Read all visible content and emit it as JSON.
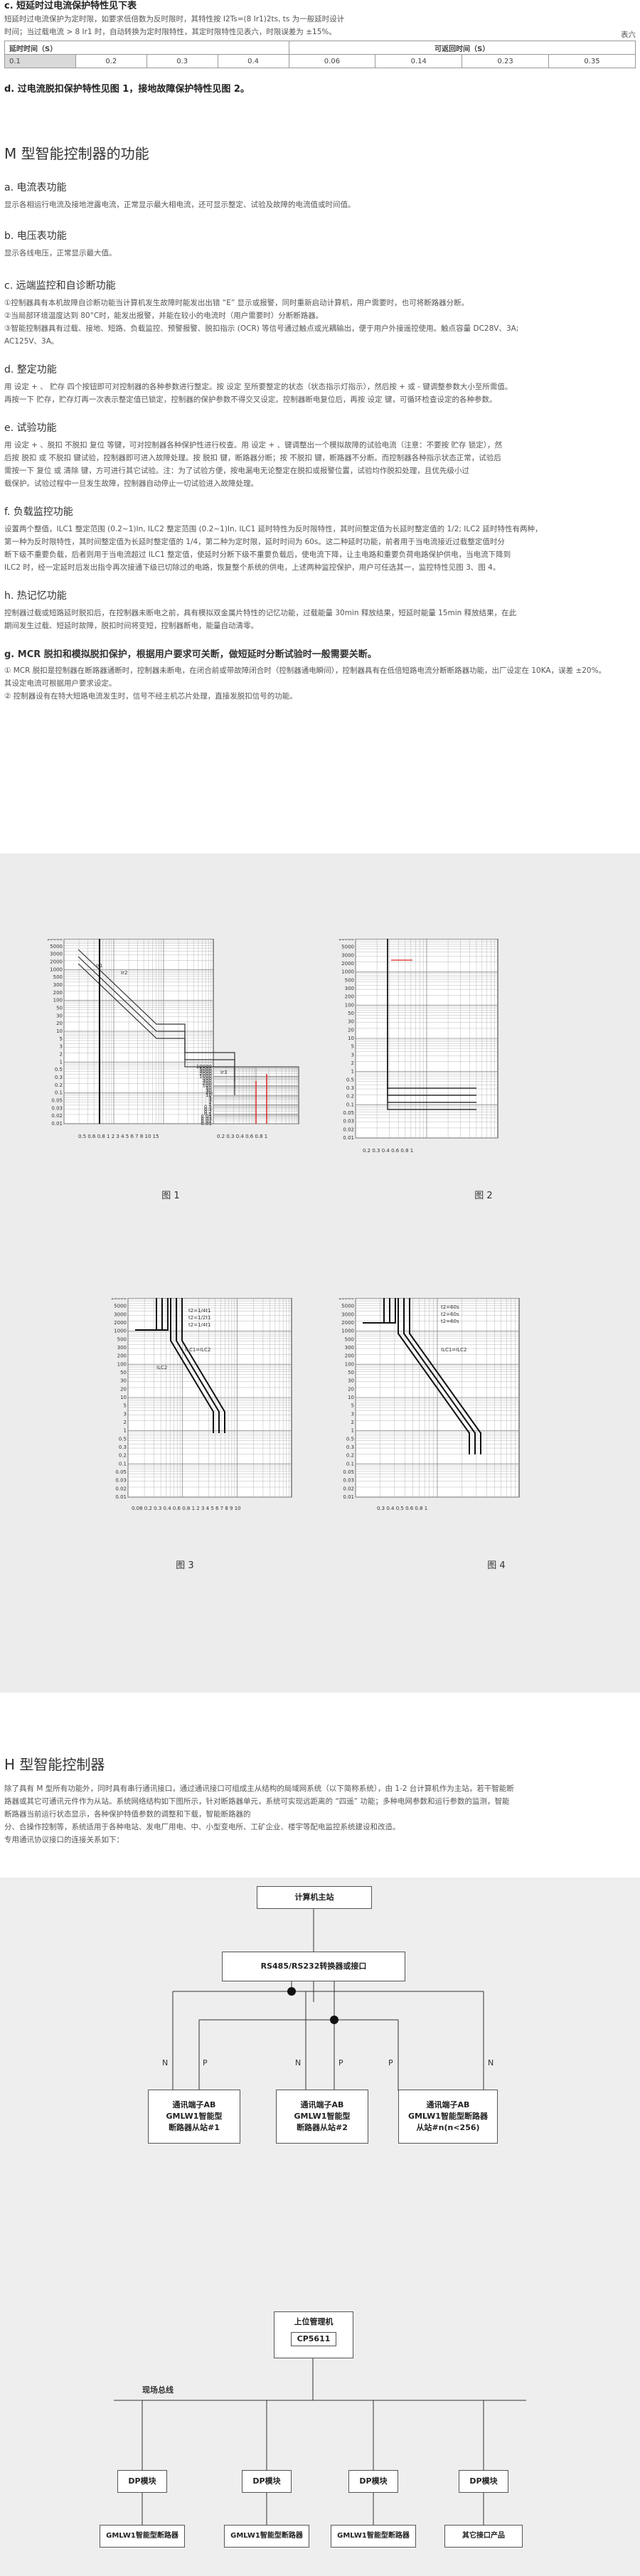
{
  "section_c": {
    "heading": "c. 短延时过电流保护特性见下表",
    "text1": "短延时过电流保护为定时限，如要求低倍数为反时限时，其特性按 I2Ts=(8 Ir1)2ts, ts 为一般延时设计",
    "text2": "时间；当过载电流 > 8 Ir1 时，自动转换为定时限特性，其定时限特性见表六，时限误差为 ±15%。",
    "table_label": "表六",
    "col1_header": "延时时间（S）",
    "col2_header": "可返回时间（S）",
    "delay_values": [
      "0.1",
      "0.2",
      "0.3",
      "0.4"
    ],
    "return_values": [
      "0.06",
      "0.14",
      "0.23",
      "0.35"
    ]
  },
  "section_d": "d. 过电流脱扣保护特性见图 1，接地故障保护特性见图 2。",
  "section_m": {
    "title": "M 型智能控制器的功能",
    "a_heading": "a. 电流表功能",
    "a_text": "显示各相运行电流及接地泄露电流，正常显示最大相电流，还可显示整定、试验及故障的电流值或时间值。",
    "b_heading": "b. 电压表功能",
    "b_text": "显示各线电压，正常显示最大值。",
    "c_heading": "c. 远端监控和自诊断功能",
    "c_text1": "①控制器具有本机故障自诊断功能当计算机发生故障时能发出出错 “E” 显示或报警，同时重新启动计算机，用户需要时，也可将断路器分断。",
    "c_text2": "②当局部环境温度达到 80°C时，能发出报警，并能在较小的电流时（用户需要时）分断断路器。",
    "c_text3": "③智能控制器具有过载、接地、短路、负载监控、预警报警、脱扣指示 (OCR) 等信号通过触点或光耦输出，便于用户外接遥控使用。触点容量 DC28V、3A;",
    "c_text4": "AC125V、3A。",
    "d_heading": "d. 整定功能",
    "d_text1": "用 设定 + 、 贮存 四个按钮即可对控制器的各种参数进行整定。按 设定 至所要整定的状态（状态指示灯指示），然后按 + 或 - 键调整参数大小至所需值。",
    "d_text2": "再按一下 贮存，贮存灯再一次表示整定值已锁定，控制器的保护参数不得交叉设定。控制器断电复位后，再按 设定 键，可循环检查设定的各种参数。",
    "e_heading": "e. 试验功能",
    "e_text1": "用 设定 + 、脱扣 不脱扣 复位 等键，可对控制器各种保护性进行校查。用 设定 + 、键调整出一个模拟故障的试验电流（注意：不要按 贮存 锁定），然",
    "e_text2": "后按 脱扣 或 不脱扣 键试验，控制器即可进入故障处理。按 脱扣 键，断路器分断；按 不脱扣 键，断路器不分断。而控制器各种指示状态正常，试验后",
    "e_text3": "需按一下 复位 或 清除 键，方可进行其它试验。注：为了试验方便，按电漏电无论整定在脱扣或报警位置，试验均作脱扣处理，且优先级小过",
    "e_text4": "载保护。试验过程中一旦发生故障，控制器自动停止一切试验进入故障处理。",
    "f_heading": "f. 负载监控功能",
    "f_text1": "设置两个整值，ILC1 整定范围 (0.2~1)In, ILC2 整定范围 (0.2~1)In, ILC1 延时特性为反时限特性，其时间整定值为长延时整定值的 1/2; ILC2 延时特性有两种，",
    "f_text2": "第一种为反时限特性，其时间整定值为长延时整定值的 1/4，第二种为定时限，延时时间为 60s。这二种延时功能，前者用于当电流接近过载整定值时分",
    "f_text3": "断下级不重要负载，后者则用于当电流超过 ILC1 整定值，使延时分断下级不重要负载后，使电流下降，让主电路和重要负荷电路保护供电，当电流下降到",
    "f_text4": "ILC2 时，经一定延时后发出指令再次接通下级已切除过的电路，恢复整个系统的供电，上述两种监控保护，用户可任选其一，监控特性见图 3、图 4。",
    "h_heading": "h. 热记忆功能",
    "h_text1": "控制器过载或短路延时脱扣后，在控制器未断电之前，具有模拟双金属片特性的记忆功能，过载能量 30min 释放结果，短延时能量 15min 释放结果，在此",
    "h_text2": "期间发生过载、短延时故障，脱扣时间将变短，控制器断电，能量自动清零。",
    "g_heading": "g. MCR 脱扣和模拟脱扣保护，根据用户要求可关断，做短延时分断试验时一般需要关断。",
    "g_text1": "① MCR 脱扣是控制器在断路器通断时，控制器未断电，在闭合前或带故障闭合时（控制器通电瞬间），控制器具有在低倍短路电流分断断路器功能，出厂设定在 10KA，误差 ±20%。",
    "g_text2": "其设定电流可根据用户要求设定。",
    "g_text3": "② 控制器设有在特大短路电流发生时，信号不经主机芯片处理，直接发脱扣信号的功能。"
  },
  "figures": {
    "fig1_caption": "图 1",
    "fig2_caption": "图 2",
    "fig3_caption": "图 3",
    "fig4_caption": "图 4",
    "y_ticks": [
      "10000",
      "5000",
      "3000",
      "2000",
      "1000",
      "500",
      "300",
      "200",
      "100",
      "50",
      "30",
      "20",
      "10",
      "5",
      "3",
      "2",
      "1",
      "0.5",
      "0.3",
      "0.2",
      "0.1",
      "0.05",
      "0.03",
      "0.02",
      "0.01"
    ],
    "x_ticks1": "0.5 0.6 0.8 1  2  3  4 5 6 7 8 10 15",
    "x_ticks2": "0.2  0.3  0.4  0.6  0.8  1",
    "x_ticks3": "0.08 0.2 0.3 0.4 0.6 0.8 1 2 3 4 5 6 7 8 9 10",
    "x_ticks4": "0.3 0.4 0.5 0.6 0.8 1",
    "fig1_labels": [
      "Ir1",
      "Ir2",
      "Ir3"
    ],
    "fig3_labels": [
      "t2=1/4t1",
      "t2=1/2t1",
      "t2=1/4t1",
      "ILC1=ILC2",
      "ILC2"
    ],
    "fig4_labels": [
      "t2=60s",
      "t2=60s",
      "t2=60s",
      "ILC1=ILC2"
    ]
  },
  "section_h": {
    "title": "H 型智能控制器",
    "text1": "除了具有 M 型所有功能外，同时具有串行通讯接口，通过通讯接口可组成主从结构的局域网系统（以下简称系统），由 1-2 台计算机作为主站，若干智能断",
    "text2": "路器或其它可通讯元件作为从站。系统网络结构如下图所示，针对断路器单元，系统可实现远距离的 “四遥” 功能；多种电网参数和运行参数的监测，智能",
    "text3": "断路器当前运行状态显示，各种保护特值参数的调整和下载，智能断路器的",
    "text4": "分、合操作控制等，系统适用于各种电站、发电厂用电、中、小型变电所、工矿企业、楼宇等配电监控系统建设和改造。",
    "text5": "专用通讯协议接口的连接关系如下："
  },
  "diagram1": {
    "host": "计算机主站",
    "converter": "RS485/RS232转换器或接口",
    "n_label": "N",
    "p_label": "P",
    "slave1": [
      "通讯端子AB",
      "GMLW1智能型",
      "断路器从站#1"
    ],
    "slave2": [
      "通讯端子AB",
      "GMLW1智能型",
      "断路器从站#2"
    ],
    "slave3": [
      "通讯端子AB",
      "GMLW1智能型断路器",
      "从站#n(n<256)"
    ]
  },
  "diagram2": {
    "master": "上位管理机",
    "cp": "CP5611",
    "bus": "现场总线",
    "dp": [
      "DP模块",
      "DP模块",
      "DP模块",
      "DP模块"
    ],
    "devices": [
      "GMLW1智能型断路器",
      "GMLW1智能型断路器",
      "GMLW1智能型断路器",
      "其它接口产品"
    ]
  }
}
